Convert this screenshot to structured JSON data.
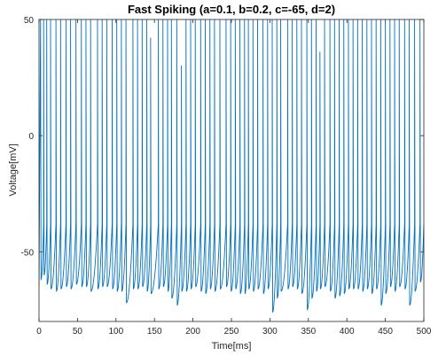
{
  "chart_data": {
    "type": "line",
    "title": "Fast Spiking (a=0.1, b=0.2, c=-65, d=2)",
    "xlabel": "Time[ms]",
    "ylabel": "Voltage[mV]",
    "xlim": [
      0,
      500
    ],
    "ylim": [
      -80,
      50
    ],
    "xticks": [
      0,
      50,
      100,
      150,
      200,
      250,
      300,
      350,
      400,
      450,
      500
    ],
    "yticks": [
      -50,
      0,
      50
    ],
    "grid": false,
    "line_color": "#0072BD",
    "spike_times": [
      2,
      6,
      10,
      15,
      22,
      28,
      35,
      41,
      48,
      55,
      61,
      67,
      76,
      82,
      88,
      95,
      101,
      107,
      113,
      122,
      128,
      134,
      140,
      145,
      155,
      161,
      167,
      172,
      179,
      185,
      191,
      197,
      203,
      210,
      216,
      222,
      228,
      235,
      243,
      249,
      255,
      261,
      267,
      272,
      278,
      284,
      291,
      297,
      303,
      309,
      314,
      323,
      329,
      335,
      341,
      348,
      354,
      360,
      365,
      371,
      378,
      384,
      390,
      396,
      402,
      408,
      414,
      420,
      426,
      432,
      438,
      444,
      450,
      456,
      462,
      468,
      475,
      481,
      488,
      495
    ],
    "spike_peaks": [
      50,
      50,
      50,
      50,
      50,
      50,
      50,
      50,
      50,
      50,
      50,
      50,
      50,
      50,
      50,
      50,
      50,
      50,
      50,
      50,
      50,
      50,
      50,
      42,
      50,
      50,
      50,
      50,
      50,
      30,
      50,
      50,
      50,
      50,
      50,
      50,
      50,
      50,
      50,
      50,
      50,
      50,
      50,
      50,
      50,
      50,
      50,
      50,
      50,
      50,
      50,
      50,
      50,
      50,
      50,
      50,
      50,
      50,
      36,
      50,
      50,
      50,
      50,
      50,
      50,
      50,
      50,
      50,
      50,
      50,
      50,
      50,
      50,
      50,
      50,
      50,
      50,
      50,
      50,
      50
    ],
    "trough_values": [
      -62,
      -60,
      -64,
      -66,
      -67,
      -66,
      -65,
      -66,
      -64,
      -65,
      -65,
      -67,
      -66,
      -65,
      -65,
      -66,
      -67,
      -67,
      -72,
      -66,
      -66,
      -65,
      -67,
      -68,
      -66,
      -65,
      -67,
      -70,
      -73,
      -67,
      -67,
      -66,
      -65,
      -67,
      -68,
      -66,
      -67,
      -66,
      -65,
      -67,
      -66,
      -68,
      -68,
      -66,
      -67,
      -66,
      -68,
      -66,
      -76,
      -70,
      -67,
      -66,
      -65,
      -66,
      -68,
      -75,
      -70,
      -67,
      -66,
      -65,
      -67,
      -70,
      -69,
      -68,
      -66,
      -66,
      -66,
      -67,
      -66,
      -68,
      -66,
      -73,
      -68,
      -65,
      -67,
      -65,
      -66,
      -73,
      -67,
      -63
    ]
  }
}
